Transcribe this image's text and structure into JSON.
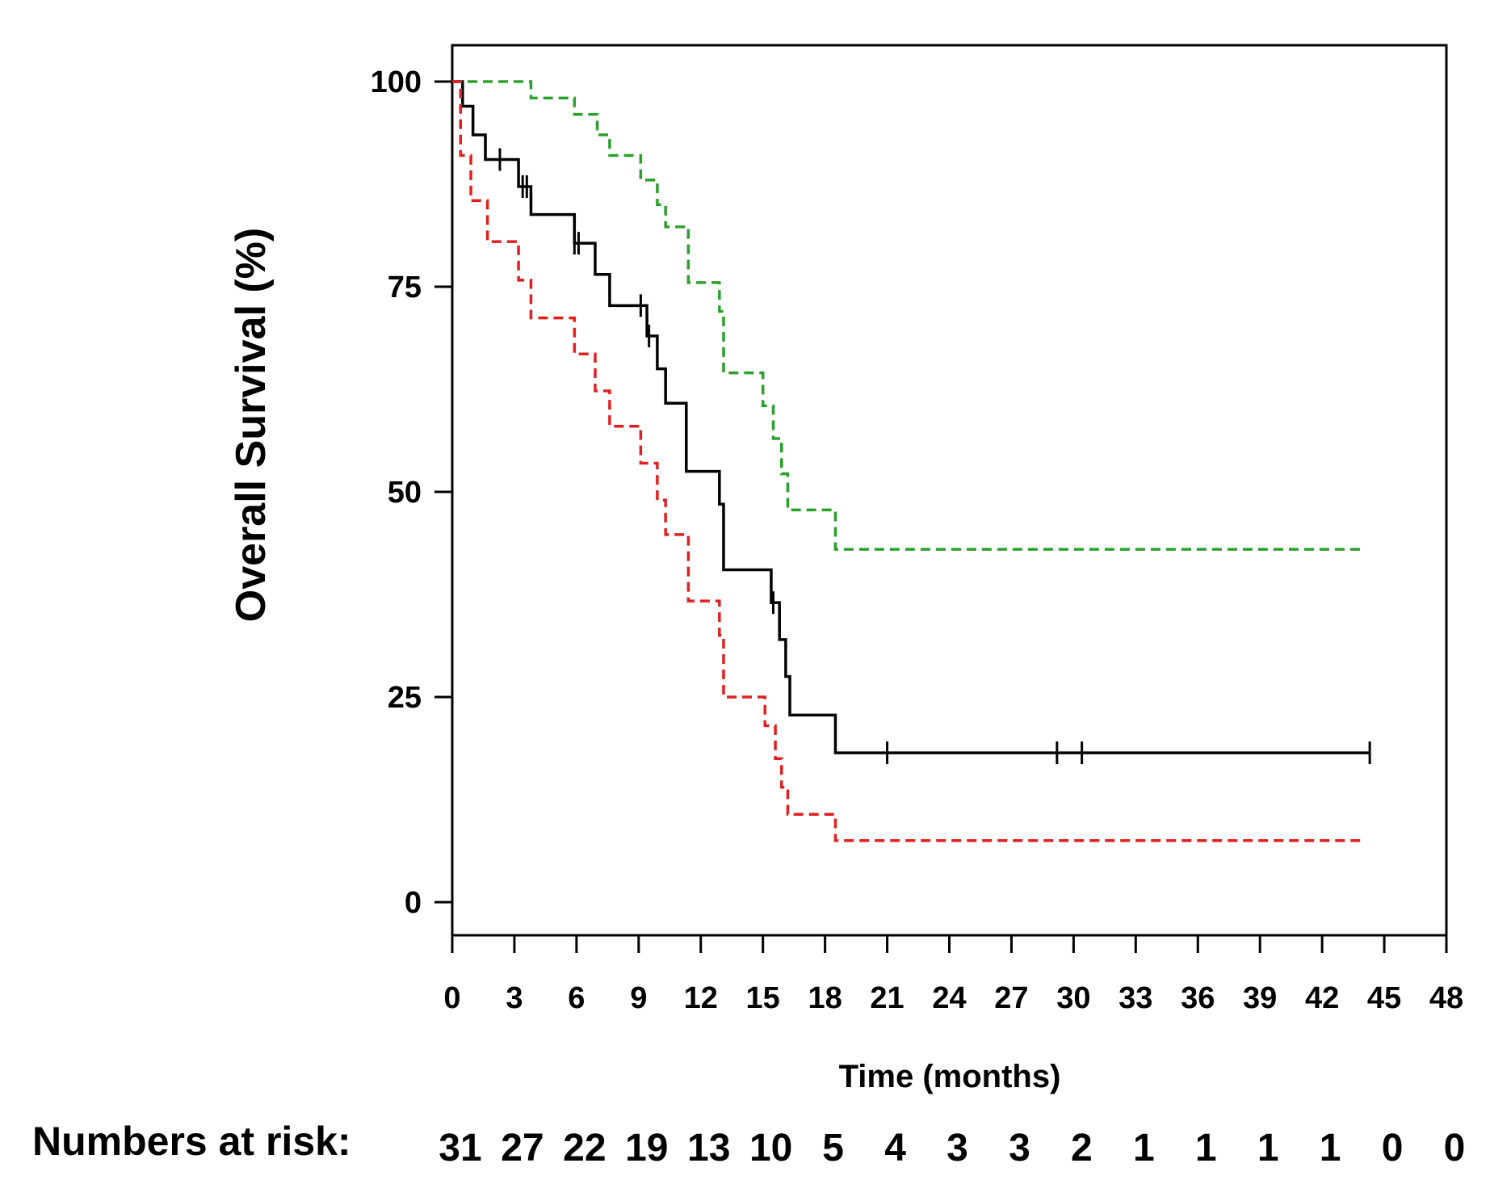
{
  "chart_data": {
    "type": "line",
    "title": "",
    "xlabel": "Time (months)",
    "ylabel": "Overall Survival (%)",
    "xlim": [
      0,
      48
    ],
    "ylim": [
      0,
      100
    ],
    "xticks": [
      "0",
      "3",
      "6",
      "9",
      "12",
      "15",
      "18",
      "21",
      "24",
      "27",
      "30",
      "33",
      "36",
      "39",
      "42",
      "45",
      "48"
    ],
    "yticks": [
      "0",
      "25",
      "50",
      "75",
      "100"
    ],
    "numbers_at_risk_label": "Numbers at risk:",
    "numbers_at_risk": [
      "31",
      "27",
      "22",
      "19",
      "13",
      "10",
      "5",
      "4",
      "3",
      "3",
      "2",
      "1",
      "1",
      "1",
      "1",
      "0",
      "0"
    ],
    "series": [
      {
        "name": "green-dashed",
        "color": "#2ca02c",
        "style": "dashed",
        "steps": [
          [
            0,
            100
          ],
          [
            3.8,
            98
          ],
          [
            5.9,
            96
          ],
          [
            7,
            93.5
          ],
          [
            7.6,
            91
          ],
          [
            9.1,
            88
          ],
          [
            9.9,
            85
          ],
          [
            10.3,
            82.3
          ],
          [
            11.4,
            75.5
          ],
          [
            12.9,
            72
          ],
          [
            13.1,
            64.5
          ],
          [
            15,
            60.5
          ],
          [
            15.5,
            56.5
          ],
          [
            15.9,
            52.2
          ],
          [
            16.2,
            47.8
          ],
          [
            18.5,
            43
          ]
        ],
        "end_x": 43.9,
        "censor": []
      },
      {
        "name": "black-solid",
        "color": "#000000",
        "style": "solid",
        "steps": [
          [
            0,
            100
          ],
          [
            0.5,
            97
          ],
          [
            1,
            93.5
          ],
          [
            1.6,
            90.5
          ],
          [
            3.2,
            87.2
          ],
          [
            3.8,
            83.8
          ],
          [
            5.9,
            80.3
          ],
          [
            6.9,
            76.5
          ],
          [
            7.6,
            72.7
          ],
          [
            9.4,
            69
          ],
          [
            9.9,
            65
          ],
          [
            10.3,
            60.8
          ],
          [
            11.3,
            52.5
          ],
          [
            12.9,
            48.5
          ],
          [
            13.1,
            40.5
          ],
          [
            15.4,
            36.5
          ],
          [
            15.8,
            32
          ],
          [
            16.1,
            27.5
          ],
          [
            16.3,
            22.8
          ],
          [
            18.5,
            18.2
          ]
        ],
        "end_x": 44.3,
        "censor": [
          [
            2.3,
            90.5
          ],
          [
            3.4,
            87.2
          ],
          [
            3.6,
            87.2
          ],
          [
            5.9,
            80.3
          ],
          [
            6.1,
            80.3
          ],
          [
            9.1,
            72.7
          ],
          [
            9.5,
            69
          ],
          [
            15.5,
            36.5
          ],
          [
            21,
            18.2
          ],
          [
            29.2,
            18.2
          ],
          [
            30.4,
            18.2
          ],
          [
            44.3,
            18.2
          ]
        ]
      },
      {
        "name": "red-dashed",
        "color": "#e02020",
        "style": "dashed",
        "steps": [
          [
            0,
            100
          ],
          [
            0.4,
            91
          ],
          [
            0.9,
            85.5
          ],
          [
            1.7,
            80.5
          ],
          [
            3.2,
            75.8
          ],
          [
            3.8,
            71.2
          ],
          [
            5.9,
            66.8
          ],
          [
            6.9,
            62.3
          ],
          [
            7.6,
            58
          ],
          [
            9.1,
            53.5
          ],
          [
            9.9,
            49
          ],
          [
            10.3,
            44.8
          ],
          [
            11.4,
            36.7
          ],
          [
            12.9,
            32.5
          ],
          [
            13.1,
            25
          ],
          [
            15.1,
            21.5
          ],
          [
            15.6,
            17.5
          ],
          [
            15.9,
            14
          ],
          [
            16.2,
            10.7
          ],
          [
            18.5,
            7.5
          ]
        ],
        "end_x": 43.9,
        "censor": []
      }
    ]
  }
}
